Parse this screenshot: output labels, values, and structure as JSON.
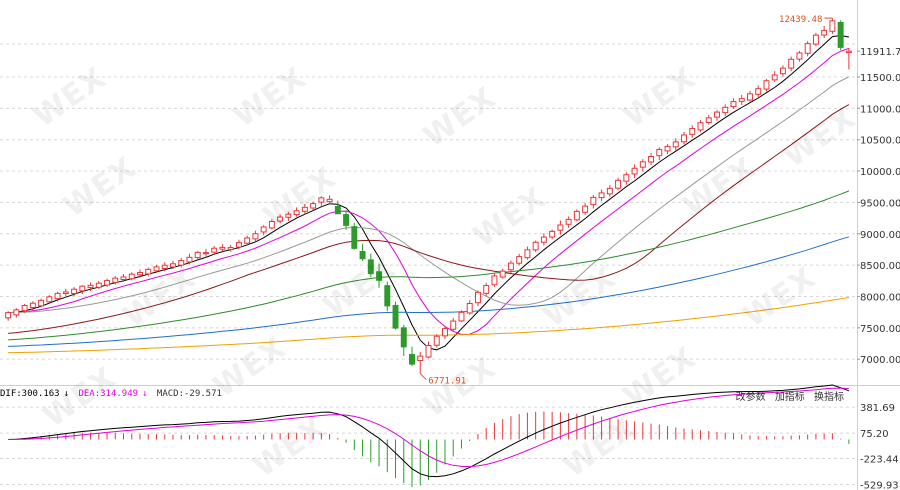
{
  "chart_data": [
    {
      "type": "candlestick",
      "title": "",
      "y_axis_ticks": [
        "11911.73",
        "11500.00",
        "11000.00",
        "10500.00",
        "10000.00",
        "9500.00",
        "9000.00",
        "8500.00",
        "8000.00",
        "7500.00",
        "7000.00"
      ],
      "ylim": [
        6700,
        12600
      ],
      "last_price": 11911.73,
      "annotations": {
        "high_label": "12439.48",
        "low_label": "6771.91"
      },
      "moving_averages": [
        {
          "color": "#000000"
        },
        {
          "color": "#e000e0"
        },
        {
          "color": "#999999"
        },
        {
          "color": "#8b1a1a"
        },
        {
          "color": "#2e8b2e"
        },
        {
          "color": "#1f6fd1"
        },
        {
          "color": "#f0a000"
        }
      ],
      "candles": [
        {
          "o": 7660,
          "h": 7765,
          "l": 7612,
          "c": 7742
        },
        {
          "o": 7706,
          "h": 7813,
          "l": 7662,
          "c": 7787
        },
        {
          "o": 7774,
          "h": 7880,
          "l": 7740,
          "c": 7856
        },
        {
          "o": 7824,
          "h": 7925,
          "l": 7771,
          "c": 7892
        },
        {
          "o": 7851,
          "h": 7967,
          "l": 7828,
          "c": 7938
        },
        {
          "o": 7916,
          "h": 8020,
          "l": 7882,
          "c": 7995
        },
        {
          "o": 7965,
          "h": 8073,
          "l": 7919,
          "c": 8049
        },
        {
          "o": 8048,
          "h": 8123,
          "l": 7981,
          "c": 8072
        },
        {
          "o": 8048,
          "h": 8149,
          "l": 8008,
          "c": 8116
        },
        {
          "o": 8091,
          "h": 8180,
          "l": 8037,
          "c": 8164
        },
        {
          "o": 8142,
          "h": 8223,
          "l": 8087,
          "c": 8178
        },
        {
          "o": 8147,
          "h": 8248,
          "l": 8120,
          "c": 8211
        },
        {
          "o": 8182,
          "h": 8285,
          "l": 8153,
          "c": 8254
        },
        {
          "o": 8225,
          "h": 8325,
          "l": 8191,
          "c": 8292
        },
        {
          "o": 8271,
          "h": 8356,
          "l": 8231,
          "c": 8311
        },
        {
          "o": 8283,
          "h": 8386,
          "l": 8256,
          "c": 8355
        },
        {
          "o": 8345,
          "h": 8430,
          "l": 8300,
          "c": 8382
        },
        {
          "o": 8359,
          "h": 8463,
          "l": 8320,
          "c": 8432
        },
        {
          "o": 8409,
          "h": 8505,
          "l": 8380,
          "c": 8472
        },
        {
          "o": 8447,
          "h": 8545,
          "l": 8401,
          "c": 8498
        },
        {
          "o": 8470,
          "h": 8569,
          "l": 8438,
          "c": 8521
        },
        {
          "o": 8500,
          "h": 8616,
          "l": 8463,
          "c": 8572
        },
        {
          "o": 8550,
          "h": 8680,
          "l": 8511,
          "c": 8624
        },
        {
          "o": 8620,
          "h": 8727,
          "l": 8583,
          "c": 8703
        },
        {
          "o": 8682,
          "h": 8758,
          "l": 8618,
          "c": 8699
        },
        {
          "o": 8708,
          "h": 8805,
          "l": 8664,
          "c": 8769
        },
        {
          "o": 8754,
          "h": 8834,
          "l": 8715,
          "c": 8782
        },
        {
          "o": 8748,
          "h": 8822,
          "l": 8713,
          "c": 8780
        },
        {
          "o": 8788,
          "h": 8905,
          "l": 8750,
          "c": 8859
        },
        {
          "o": 8850,
          "h": 8971,
          "l": 8811,
          "c": 8933
        },
        {
          "o": 8918,
          "h": 9049,
          "l": 8886,
          "c": 9000
        },
        {
          "o": 9029,
          "h": 9135,
          "l": 8976,
          "c": 9108
        },
        {
          "o": 9093,
          "h": 9237,
          "l": 9067,
          "c": 9196
        },
        {
          "o": 9202,
          "h": 9312,
          "l": 9169,
          "c": 9267
        },
        {
          "o": 9263,
          "h": 9351,
          "l": 9202,
          "c": 9312
        },
        {
          "o": 9306,
          "h": 9421,
          "l": 9272,
          "c": 9366
        },
        {
          "o": 9358,
          "h": 9475,
          "l": 9310,
          "c": 9421
        },
        {
          "o": 9411,
          "h": 9515,
          "l": 9374,
          "c": 9481
        },
        {
          "o": 9504,
          "h": 9600,
          "l": 9446,
          "c": 9573
        },
        {
          "o": 9512,
          "h": 9614,
          "l": 9471,
          "c": 9549
        },
        {
          "o": 9435,
          "h": 9527,
          "l": 9316,
          "c": 9319
        },
        {
          "o": 9306,
          "h": 9375,
          "l": 9062,
          "c": 9134
        },
        {
          "o": 9113,
          "h": 9171,
          "l": 8746,
          "c": 8767
        },
        {
          "o": 8718,
          "h": 8840,
          "l": 8566,
          "c": 8602
        },
        {
          "o": 8583,
          "h": 8684,
          "l": 8309,
          "c": 8364
        },
        {
          "o": 8394,
          "h": 8524,
          "l": 8138,
          "c": 8258
        },
        {
          "o": 8173,
          "h": 8237,
          "l": 7764,
          "c": 7850
        },
        {
          "o": 7857,
          "h": 7917,
          "l": 7472,
          "c": 7496
        },
        {
          "o": 7500,
          "h": 7548,
          "l": 7052,
          "c": 7197
        },
        {
          "o": 7074,
          "h": 7198,
          "l": 6889,
          "c": 6922
        },
        {
          "o": 6979,
          "h": 7117,
          "l": 6771,
          "c": 7049
        },
        {
          "o": 7034,
          "h": 7282,
          "l": 7013,
          "c": 7218
        },
        {
          "o": 7223,
          "h": 7398,
          "l": 7185,
          "c": 7366
        },
        {
          "o": 7372,
          "h": 7534,
          "l": 7322,
          "c": 7488
        },
        {
          "o": 7478,
          "h": 7656,
          "l": 7439,
          "c": 7608
        },
        {
          "o": 7610,
          "h": 7779,
          "l": 7590,
          "c": 7747
        },
        {
          "o": 7737,
          "h": 7939,
          "l": 7710,
          "c": 7888
        },
        {
          "o": 7901,
          "h": 8096,
          "l": 7846,
          "c": 8066
        },
        {
          "o": 8050,
          "h": 8218,
          "l": 8004,
          "c": 8174
        },
        {
          "o": 8186,
          "h": 8362,
          "l": 8153,
          "c": 8328
        },
        {
          "o": 8310,
          "h": 8441,
          "l": 8286,
          "c": 8404
        },
        {
          "o": 8426,
          "h": 8573,
          "l": 8368,
          "c": 8532
        },
        {
          "o": 8531,
          "h": 8680,
          "l": 8493,
          "c": 8636
        },
        {
          "o": 8619,
          "h": 8796,
          "l": 8587,
          "c": 8744
        },
        {
          "o": 8744,
          "h": 8891,
          "l": 8707,
          "c": 8865
        },
        {
          "o": 8864,
          "h": 9009,
          "l": 8810,
          "c": 8946
        },
        {
          "o": 8948,
          "h": 9069,
          "l": 8916,
          "c": 9038
        },
        {
          "o": 9057,
          "h": 9212,
          "l": 8984,
          "c": 9140
        },
        {
          "o": 9151,
          "h": 9276,
          "l": 9096,
          "c": 9230
        },
        {
          "o": 9222,
          "h": 9390,
          "l": 9197,
          "c": 9357
        },
        {
          "o": 9342,
          "h": 9491,
          "l": 9297,
          "c": 9441
        },
        {
          "o": 9464,
          "h": 9617,
          "l": 9404,
          "c": 9580
        },
        {
          "o": 9577,
          "h": 9707,
          "l": 9520,
          "c": 9651
        },
        {
          "o": 9636,
          "h": 9778,
          "l": 9592,
          "c": 9724
        },
        {
          "o": 9727,
          "h": 9895,
          "l": 9694,
          "c": 9852
        },
        {
          "o": 9839,
          "h": 9983,
          "l": 9781,
          "c": 9942
        },
        {
          "o": 9954,
          "h": 10107,
          "l": 9889,
          "c": 10044
        },
        {
          "o": 10062,
          "h": 10190,
          "l": 9992,
          "c": 10148
        },
        {
          "o": 10144,
          "h": 10287,
          "l": 10098,
          "c": 10232
        },
        {
          "o": 10245,
          "h": 10378,
          "l": 10173,
          "c": 10345
        },
        {
          "o": 10321,
          "h": 10429,
          "l": 10270,
          "c": 10393
        },
        {
          "o": 10386,
          "h": 10524,
          "l": 10320,
          "c": 10465
        },
        {
          "o": 10467,
          "h": 10624,
          "l": 10425,
          "c": 10575
        },
        {
          "o": 10585,
          "h": 10730,
          "l": 10531,
          "c": 10679
        },
        {
          "o": 10656,
          "h": 10812,
          "l": 10618,
          "c": 10771
        },
        {
          "o": 10774,
          "h": 10896,
          "l": 10741,
          "c": 10848
        },
        {
          "o": 10860,
          "h": 10969,
          "l": 10802,
          "c": 10940
        },
        {
          "o": 10932,
          "h": 11063,
          "l": 10878,
          "c": 11016
        },
        {
          "o": 11028,
          "h": 11159,
          "l": 10991,
          "c": 11108
        },
        {
          "o": 11111,
          "h": 11215,
          "l": 11053,
          "c": 11154
        },
        {
          "o": 11133,
          "h": 11278,
          "l": 11106,
          "c": 11232
        },
        {
          "o": 11224,
          "h": 11366,
          "l": 11180,
          "c": 11313
        },
        {
          "o": 11308,
          "h": 11470,
          "l": 11268,
          "c": 11440
        },
        {
          "o": 11454,
          "h": 11593,
          "l": 11422,
          "c": 11532
        },
        {
          "o": 11552,
          "h": 11684,
          "l": 11506,
          "c": 11641
        },
        {
          "o": 11642,
          "h": 11825,
          "l": 11592,
          "c": 11782
        },
        {
          "o": 11785,
          "h": 11914,
          "l": 11743,
          "c": 11883
        },
        {
          "o": 11878,
          "h": 12073,
          "l": 11829,
          "c": 12032
        },
        {
          "o": 12024,
          "h": 12205,
          "l": 11992,
          "c": 12167
        },
        {
          "o": 12169,
          "h": 12316,
          "l": 12121,
          "c": 12243
        },
        {
          "o": 12229,
          "h": 12439,
          "l": 12184,
          "c": 12396
        },
        {
          "o": 12369,
          "h": 12404,
          "l": 11926,
          "c": 11972
        },
        {
          "o": 11889,
          "h": 11963,
          "l": 11620,
          "c": 11911
        }
      ]
    },
    {
      "type": "macd",
      "labels": [
        {
          "text": "DIF:300.163",
          "color": "#000000"
        },
        {
          "text": "DEA:314.949",
          "color": "#e000e0"
        },
        {
          "text": "MACD:-29.571",
          "color": "#333333"
        }
      ],
      "y_axis_ticks": [
        "381.69",
        "75.20",
        "-223.44",
        "-529.93"
      ],
      "ylim": [
        -560,
        430
      ]
    }
  ],
  "toolbar": {
    "buttons": [
      "改参数",
      "加指标",
      "换指标"
    ]
  },
  "watermark_text": "WEX"
}
